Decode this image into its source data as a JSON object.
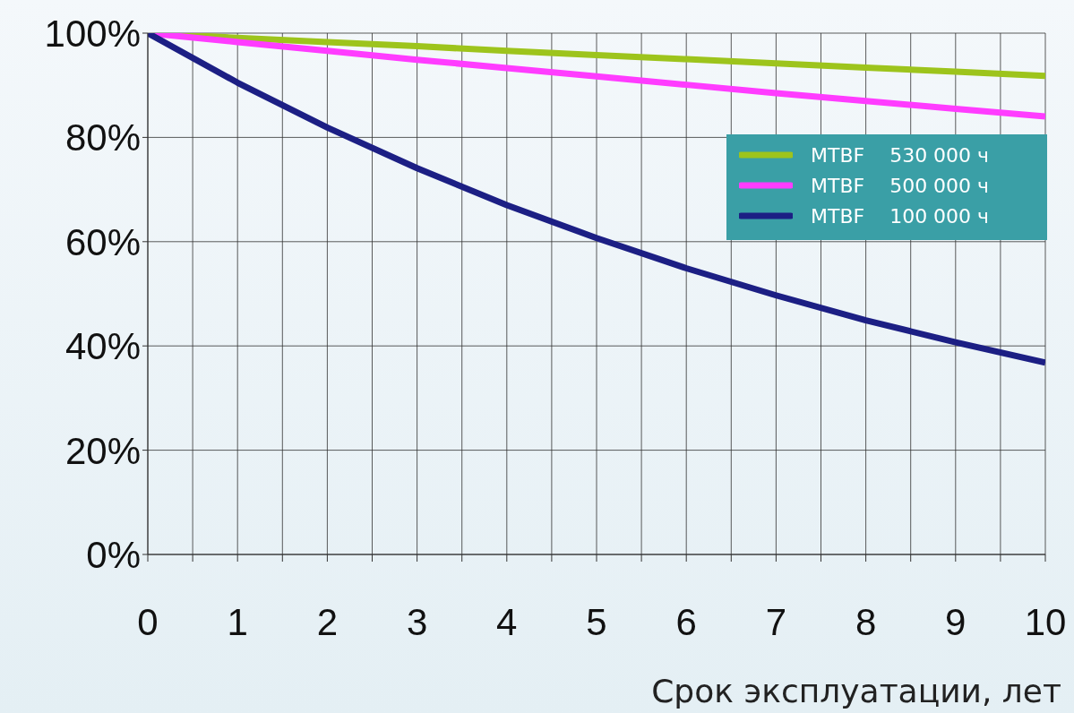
{
  "chart_data": {
    "type": "line",
    "xlabel": "Срок эксплуатации, лет",
    "x": [
      0,
      1,
      2,
      3,
      4,
      5,
      6,
      7,
      8,
      9,
      10
    ],
    "series": [
      {
        "name": "MTBF    530 000 ч",
        "color": "#9dc41c",
        "values": [
          100,
          99.1,
          98.3,
          97.5,
          96.6,
          95.8,
          95.0,
          94.2,
          93.4,
          92.6,
          91.8
        ]
      },
      {
        "name": "MTBF    500 000 ч",
        "color": "#ff3cff",
        "values": [
          100,
          98.3,
          96.6,
          94.9,
          93.3,
          91.7,
          90.1,
          88.5,
          87.0,
          85.5,
          84.0
        ]
      },
      {
        "name": "MTBF    100 000 ч",
        "color": "#1c1f84",
        "values": [
          100,
          90.5,
          81.9,
          74.1,
          67.0,
          60.7,
          54.9,
          49.7,
          44.9,
          40.7,
          36.8
        ]
      }
    ],
    "xlim": [
      0,
      10
    ],
    "xticks": [
      0,
      {
        "value": 0.5,
        "label": null
      },
      1,
      {
        "value": 1.5,
        "label": null
      },
      2,
      {
        "value": 2.5,
        "label": null
      },
      3,
      {
        "value": 3.5,
        "label": null
      },
      4,
      {
        "value": 4.5,
        "label": null
      },
      5,
      {
        "value": 5.5,
        "label": null
      },
      6,
      {
        "value": 6.5,
        "label": null
      },
      7,
      {
        "value": 7.5,
        "label": null
      },
      8,
      {
        "value": 8.5,
        "label": null
      },
      9,
      {
        "value": 9.5,
        "label": null
      },
      10
    ],
    "ylim": [
      0,
      100
    ],
    "yticks": [
      {
        "value": 0,
        "label": "0%"
      },
      {
        "value": 20,
        "label": "20%"
      },
      {
        "value": 40,
        "label": "40%"
      },
      {
        "value": 60,
        "label": "60%"
      },
      {
        "value": 80,
        "label": "80%"
      },
      {
        "value": 100,
        "label": "100%"
      }
    ],
    "grid": true,
    "legend": "top right",
    "marker": "none",
    "line_style": "solid"
  }
}
